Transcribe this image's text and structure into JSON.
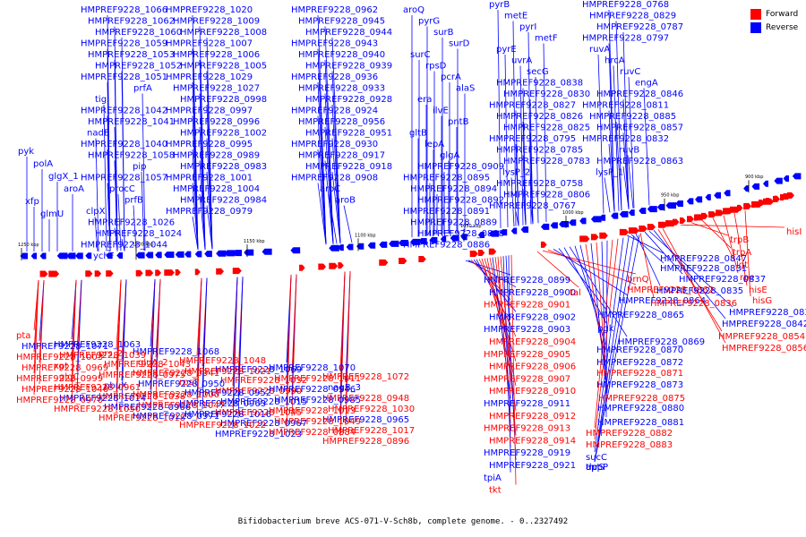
{
  "legend": {
    "forward_label": "Forward",
    "forward_color": "#ff0000",
    "reverse_label": "Reverse",
    "reverse_color": "#0000ff"
  },
  "caption": "Bifidobacterium breve ACS-071-V-Sch8b, complete genome. - 0..2327492",
  "ticks": [
    "1250 kbp",
    "1200 kbp",
    "1150 kbp",
    "1100 kbp",
    "1050 kbp",
    "1000 kbp",
    "950 kbp",
    "900 kbp"
  ],
  "reverse_labels": [
    {
      "t": "pyk"
    },
    {
      "t": "polA"
    },
    {
      "t": "glgX_1"
    },
    {
      "t": "aroA"
    },
    {
      "t": "xfp"
    },
    {
      "t": "glmU"
    },
    {
      "t": "HMPREF9228_1066"
    },
    {
      "t": "HMPREF9228_1062"
    },
    {
      "t": "HMPREF9228_1060"
    },
    {
      "t": "HMPREF9228_1059"
    },
    {
      "t": "HMPREF9228_1053"
    },
    {
      "t": "HMPREF9228_1052"
    },
    {
      "t": "HMPREF9228_1051"
    },
    {
      "t": "prfA"
    },
    {
      "t": "tig"
    },
    {
      "t": "HMPREF9228_1042"
    },
    {
      "t": "HMPREF9228_1041"
    },
    {
      "t": "nadE"
    },
    {
      "t": "HMPREF9228_1040"
    },
    {
      "t": "HMPREF9228_1058"
    },
    {
      "t": "pip"
    },
    {
      "t": "HMPREF9228_1057"
    },
    {
      "t": "procC"
    },
    {
      "t": "prfB"
    },
    {
      "t": "clpX"
    },
    {
      "t": "HMPREF9228_1026"
    },
    {
      "t": "HMPREF9228_1024"
    },
    {
      "t": "HMPREF9228_1044"
    },
    {
      "t": "ychF"
    },
    {
      "t": "HMPREF9228_1020"
    },
    {
      "t": "HMPREF9228_1009"
    },
    {
      "t": "HMPREF9228_1008"
    },
    {
      "t": "HMPREF9228_1007"
    },
    {
      "t": "HMPREF9228_1006"
    },
    {
      "t": "HMPREF9228_1005"
    },
    {
      "t": "HMPREF9228_1029"
    },
    {
      "t": "HMPREF9228_1027"
    },
    {
      "t": "HMPREF9228_0998"
    },
    {
      "t": "HMPREF9228_0997"
    },
    {
      "t": "HMPREF9228_0996"
    },
    {
      "t": "HMPREF9228_1002"
    },
    {
      "t": "HMPREF9228_0995"
    },
    {
      "t": "HMPREF9228_0989"
    },
    {
      "t": "HMPREF9228_0983"
    },
    {
      "t": "HMPREF9228_1001"
    },
    {
      "t": "HMPREF9228_1004"
    },
    {
      "t": "HMPREF9228_0984"
    },
    {
      "t": "HMPREF9228_0979"
    },
    {
      "t": "HMPREF9228_0962"
    },
    {
      "t": "HMPREF9228_0945"
    },
    {
      "t": "HMPREF9228_0944"
    },
    {
      "t": "HMPREF9228_0943"
    },
    {
      "t": "HMPREF9228_0940"
    },
    {
      "t": "HMPREF9228_0939"
    },
    {
      "t": "HMPREF9228_0936"
    },
    {
      "t": "HMPREF9228_0933"
    },
    {
      "t": "HMPREF9228_0928"
    },
    {
      "t": "HMPREF9228_0924"
    },
    {
      "t": "HMPREF9228_0956"
    },
    {
      "t": "HMPREF9228_0951"
    },
    {
      "t": "HMPREF9228_0930"
    },
    {
      "t": "HMPREF9228_0917"
    },
    {
      "t": "HMPREF9228_0918"
    },
    {
      "t": "HMPREF9228_0908"
    },
    {
      "t": "aroC"
    },
    {
      "t": "aroB"
    },
    {
      "t": "aroQ"
    },
    {
      "t": "pyrG"
    },
    {
      "t": "surB"
    },
    {
      "t": "surD"
    },
    {
      "t": "surC"
    },
    {
      "t": "rpsD"
    },
    {
      "t": "pcrA"
    },
    {
      "t": "alaS"
    },
    {
      "t": "era"
    },
    {
      "t": "ilvE"
    },
    {
      "t": "pntB"
    },
    {
      "t": "gltB"
    },
    {
      "t": "lepA"
    },
    {
      "t": "glgA"
    },
    {
      "t": "HMPREF9228_0909"
    },
    {
      "t": "HMPREF9228_0895"
    },
    {
      "t": "HMPREF9228_0894"
    },
    {
      "t": "HMPREF9228_0892"
    },
    {
      "t": "HMPREF9228_0891"
    },
    {
      "t": "HMPREF9228_0889"
    },
    {
      "t": "HMPREF9228_0888"
    },
    {
      "t": "HMPREF9228_0886"
    },
    {
      "t": "pyrB"
    },
    {
      "t": "metE"
    },
    {
      "t": "pyrI"
    },
    {
      "t": "metF"
    },
    {
      "t": "pyrE"
    },
    {
      "t": "uvrA"
    },
    {
      "t": "secG"
    },
    {
      "t": "HMPREF9228_0838"
    },
    {
      "t": "HMPREF9228_0830"
    },
    {
      "t": "HMPREF9228_0827"
    },
    {
      "t": "HMPREF9228_0826"
    },
    {
      "t": "HMPREF9228_0825"
    },
    {
      "t": "HMPREF9228_0795"
    },
    {
      "t": "HMPREF9228_0785"
    },
    {
      "t": "HMPREF9228_0783"
    },
    {
      "t": "lysP_2"
    },
    {
      "t": "HMPREF9228_0758"
    },
    {
      "t": "HMPREF9228_0806"
    },
    {
      "t": "HMPREF9228_0767"
    },
    {
      "t": "HMPREF9228_0768"
    },
    {
      "t": "HMPREF9228_0829"
    },
    {
      "t": "HMPREF9228_0787"
    },
    {
      "t": "HMPREF9228_0797"
    },
    {
      "t": "ruvA"
    },
    {
      "t": "hrcA"
    },
    {
      "t": "ruvC"
    },
    {
      "t": "engA"
    },
    {
      "t": "HMPREF9228_0846"
    },
    {
      "t": "HMPREF9228_0811"
    },
    {
      "t": "HMPREF9228_0885"
    },
    {
      "t": "HMPREF9228_0857"
    },
    {
      "t": "HMPREF9228_0832"
    },
    {
      "t": "ruvB"
    },
    {
      "t": "HMPREF9228_0863"
    },
    {
      "t": "lysP_1"
    }
  ],
  "forward_labels_right": [
    {
      "t": "hisI"
    },
    {
      "t": "trpB"
    },
    {
      "t": "trpA"
    },
    {
      "t": "lgt"
    },
    {
      "t": "rpe"
    },
    {
      "t": "hisE"
    },
    {
      "t": "hisG"
    }
  ],
  "bottom_labels": [
    {
      "t": "pta",
      "c": "f"
    },
    {
      "t": "HMPREF9228_1063",
      "c": "r"
    },
    {
      "t": "prs_2",
      "c": "f"
    },
    {
      "t": "HMPREF9228_1068",
      "c": "r"
    },
    {
      "t": "HMPREF9228_1048",
      "c": "f"
    },
    {
      "t": "HMPREF9228_1069",
      "c": "r"
    },
    {
      "t": "HMPREF9228_1070",
      "c": "r"
    },
    {
      "t": "HMPREF9228_1072",
      "c": "f"
    },
    {
      "t": "HMPREF9228_1071",
      "c": "r"
    },
    {
      "t": "HMPREF9228_1039",
      "c": "f"
    },
    {
      "t": "HMPREF9228_1043",
      "c": "f"
    },
    {
      "t": "gluA_2",
      "c": "f"
    },
    {
      "t": "HMPREF9228_1021",
      "c": "f"
    },
    {
      "t": "HMPREF9228_1032",
      "c": "f"
    },
    {
      "t": "HMPREF9228_1011",
      "c": "f"
    },
    {
      "t": "nagB_3",
      "c": "r"
    },
    {
      "t": "HMPREF9228_1003",
      "c": "f"
    },
    {
      "t": "xpt",
      "c": "f"
    },
    {
      "t": "HMPREF9228_0975",
      "c": "f"
    },
    {
      "t": "HMPREF9228_0941",
      "c": "f"
    },
    {
      "t": "rpsT",
      "c": "f"
    },
    {
      "t": "HMPREF9228_0990",
      "c": "f"
    },
    {
      "t": "HMPREF9228_0946",
      "c": "r"
    },
    {
      "t": "HMPREF9228_0948",
      "c": "f"
    },
    {
      "t": "HMPREF9228_0969",
      "c": "f"
    },
    {
      "t": "glgC",
      "c": "f"
    },
    {
      "t": "pbuX",
      "c": "r"
    },
    {
      "t": "HMPREF9228_0950",
      "c": "r"
    },
    {
      "t": "HMPREF9228_0952",
      "c": "r"
    },
    {
      "t": "HMPREF9228_1015",
      "c": "r"
    },
    {
      "t": "HMPREF9228_0985",
      "c": "r"
    },
    {
      "t": "HMPREF9228_1030",
      "c": "f"
    },
    {
      "t": "HMPREF9228_0999",
      "c": "f"
    },
    {
      "t": "HMPREF9228_0961",
      "c": "f"
    },
    {
      "t": "HMPREF9228_1038",
      "c": "f"
    },
    {
      "t": "HMPREF9228_1000",
      "c": "f"
    },
    {
      "t": "HMPREF9228_0963",
      "c": "r"
    },
    {
      "t": "HMPREF9228_1045",
      "c": "f"
    },
    {
      "t": "HMPREF9228_1013",
      "c": "f"
    },
    {
      "t": "HMPREF9228_0965",
      "c": "r"
    },
    {
      "t": "HMPREF9228_1046",
      "c": "f"
    },
    {
      "t": "HMPREF9228_1014",
      "c": "r"
    },
    {
      "t": "HMPREF9228_0966",
      "c": "r"
    },
    {
      "t": "HMPREF9228_1047",
      "c": "f"
    },
    {
      "t": "HMPREF9228_1016",
      "c": "r"
    },
    {
      "t": "HMPREF9228_0967",
      "c": "r"
    },
    {
      "t": "HMPREF9228_1049",
      "c": "f"
    },
    {
      "t": "HMPREF9228_1017",
      "c": "f"
    },
    {
      "t": "HMPREF9228_0970",
      "c": "f"
    },
    {
      "t": "HMPREF9228_1050",
      "c": "f"
    },
    {
      "t": "HMPREF9228_1018",
      "c": "f"
    },
    {
      "t": "HMPREF9228_0971",
      "c": "r"
    },
    {
      "t": "HMPREF9228_1022",
      "c": "f"
    },
    {
      "t": "HMPREF9228_1023",
      "c": "r"
    },
    {
      "t": "HMPREF9228_0884",
      "c": "f"
    },
    {
      "t": "HMPREF9228_0896",
      "c": "f"
    },
    {
      "t": "HMPREF9228_0899",
      "c": "r"
    },
    {
      "t": "HMPREF9228_0900",
      "c": "r"
    },
    {
      "t": "HMPREF9228_0901",
      "c": "f"
    },
    {
      "t": "HMPREF9228_0902",
      "c": "r"
    },
    {
      "t": "HMPREF9228_0903",
      "c": "r"
    },
    {
      "t": "HMPREF9228_0904",
      "c": "f"
    },
    {
      "t": "HMPREF9228_0905",
      "c": "f"
    },
    {
      "t": "HMPREF9228_0906",
      "c": "f"
    },
    {
      "t": "HMPREF9228_0907",
      "c": "f"
    },
    {
      "t": "HMPREF9228_0910",
      "c": "f"
    },
    {
      "t": "HMPREF9228_0911",
      "c": "r"
    },
    {
      "t": "HMPREF9228_0912",
      "c": "f"
    },
    {
      "t": "HMPREF9228_0913",
      "c": "f"
    },
    {
      "t": "HMPREF9228_0914",
      "c": "f"
    },
    {
      "t": "HMPREF9228_0919",
      "c": "r"
    },
    {
      "t": "HMPREF9228_0921",
      "c": "r"
    },
    {
      "t": "tpiA",
      "c": "r"
    },
    {
      "t": "tkt",
      "c": "f"
    },
    {
      "t": "tal",
      "c": "f"
    },
    {
      "t": "brnQ",
      "c": "f"
    },
    {
      "t": "HMPREF9228_0862",
      "c": "f"
    },
    {
      "t": "HMPREF9228_0864",
      "c": "r"
    },
    {
      "t": "HMPREF9228_0865",
      "c": "r"
    },
    {
      "t": "pgk",
      "c": "r"
    },
    {
      "t": "HMPREF9228_0869",
      "c": "r"
    },
    {
      "t": "HMPREF9228_0870",
      "c": "r"
    },
    {
      "t": "HMPREF9228_0872",
      "c": "r"
    },
    {
      "t": "HMPREF9228_0871",
      "c": "f"
    },
    {
      "t": "HMPREF9228_0873",
      "c": "r"
    },
    {
      "t": "HMPREF9228_0875",
      "c": "f"
    },
    {
      "t": "HMPREF9228_0880",
      "c": "r"
    },
    {
      "t": "HMPREF9228_0881",
      "c": "r"
    },
    {
      "t": "HMPREF9228_0882",
      "c": "f"
    },
    {
      "t": "HMPREF9228_0883",
      "c": "f"
    },
    {
      "t": "sucC",
      "c": "r"
    },
    {
      "t": "apt",
      "c": "r"
    },
    {
      "t": "thrS",
      "c": "r"
    },
    {
      "t": "uppP",
      "c": "r"
    },
    {
      "t": "HMPREF9228_0847",
      "c": "r"
    },
    {
      "t": "HMPREF9228_0831",
      "c": "r"
    },
    {
      "t": "HMPREF9228_0835",
      "c": "r"
    },
    {
      "t": "HMPREF9228_0836",
      "c": "f"
    },
    {
      "t": "HMPREF9228_0837",
      "c": "r"
    },
    {
      "t": "HMPREF9228_0839",
      "c": "r"
    },
    {
      "t": "HMPREF9228_0842",
      "c": "r"
    },
    {
      "t": "HMPREF9228_0854",
      "c": "f"
    },
    {
      "t": "HMPREF9228_0856",
      "c": "f"
    }
  ]
}
